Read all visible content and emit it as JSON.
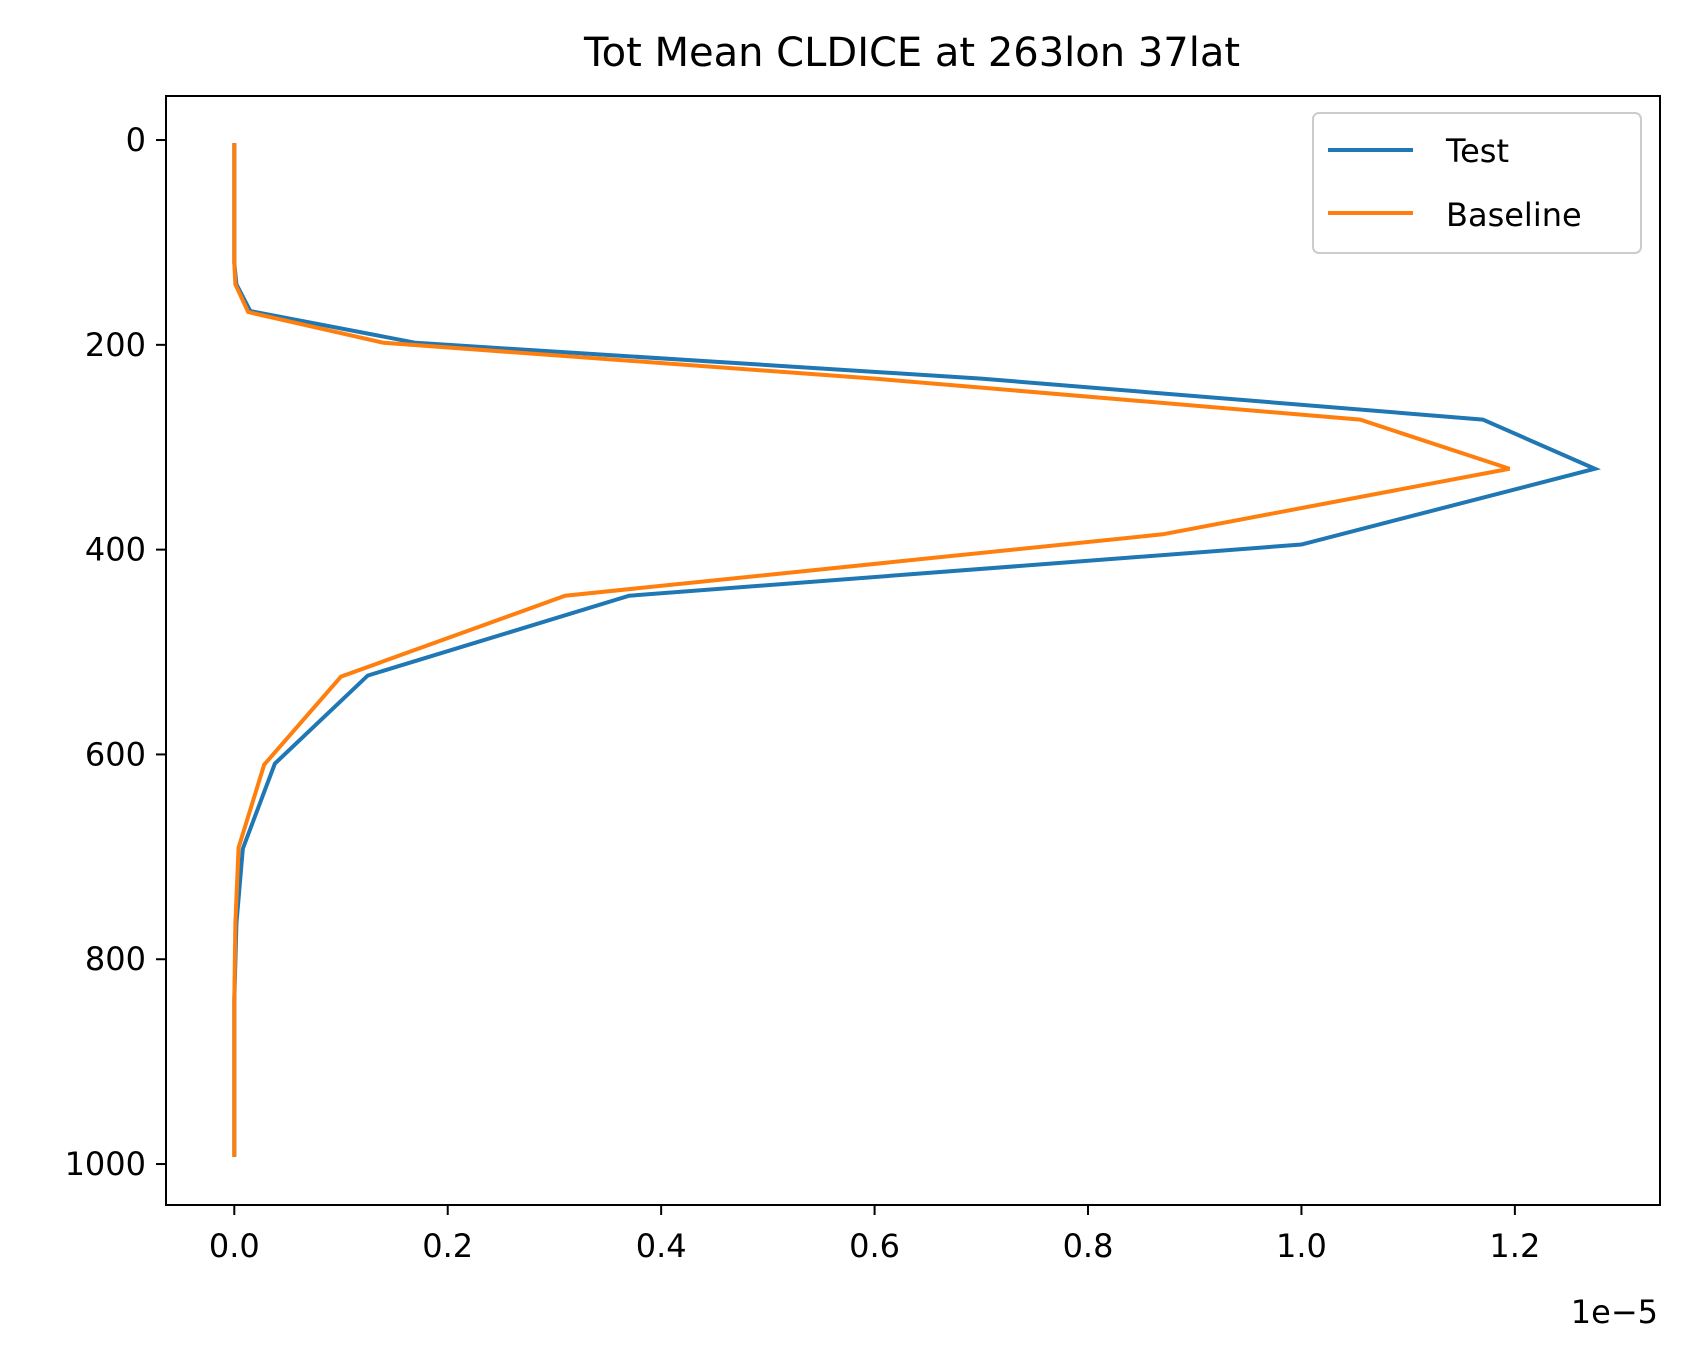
{
  "chart_data": {
    "type": "line",
    "title": "Tot Mean CLDICE at 263lon 37lat",
    "xlabel": "",
    "ylabel": "",
    "offset_label": "1e−5",
    "xlim": [
      -0.064,
      1.336
    ],
    "ylim": [
      1040,
      -43
    ],
    "y_inverted": true,
    "xticks": [
      0.0,
      0.2,
      0.4,
      0.6,
      0.8,
      1.0,
      1.2
    ],
    "xtick_labels": [
      "0.0",
      "0.2",
      "0.4",
      "0.6",
      "0.8",
      "1.0",
      "1.2"
    ],
    "yticks": [
      0,
      200,
      400,
      600,
      800,
      1000
    ],
    "ytick_labels": [
      "0",
      "200",
      "400",
      "600",
      "800",
      "1000"
    ],
    "grid": false,
    "legend_position": "top-right",
    "series": [
      {
        "name": "Test",
        "color": "#1f77b4",
        "x": [
          0.0,
          0.0,
          0.0,
          0.002,
          0.015,
          0.17,
          0.7,
          1.17,
          1.275,
          1.0,
          0.37,
          0.125,
          0.038,
          0.008,
          0.002,
          0.0,
          0.0,
          0.0
        ],
        "y": [
          3,
          60,
          120,
          141,
          167,
          198,
          233,
          273,
          321,
          395,
          445,
          523,
          609,
          692,
          765,
          840,
          920,
          993
        ]
      },
      {
        "name": "Baseline",
        "color": "#ff7f0e",
        "x": [
          0.0,
          0.0,
          0.0,
          0.001,
          0.013,
          0.14,
          0.6,
          1.055,
          1.195,
          0.87,
          0.31,
          0.1,
          0.028,
          0.004,
          0.001,
          0.0,
          0.0,
          0.0
        ],
        "y": [
          3,
          60,
          120,
          141,
          168,
          198,
          233,
          273,
          321,
          385,
          445,
          524,
          610,
          691,
          765,
          840,
          920,
          993
        ]
      }
    ]
  }
}
